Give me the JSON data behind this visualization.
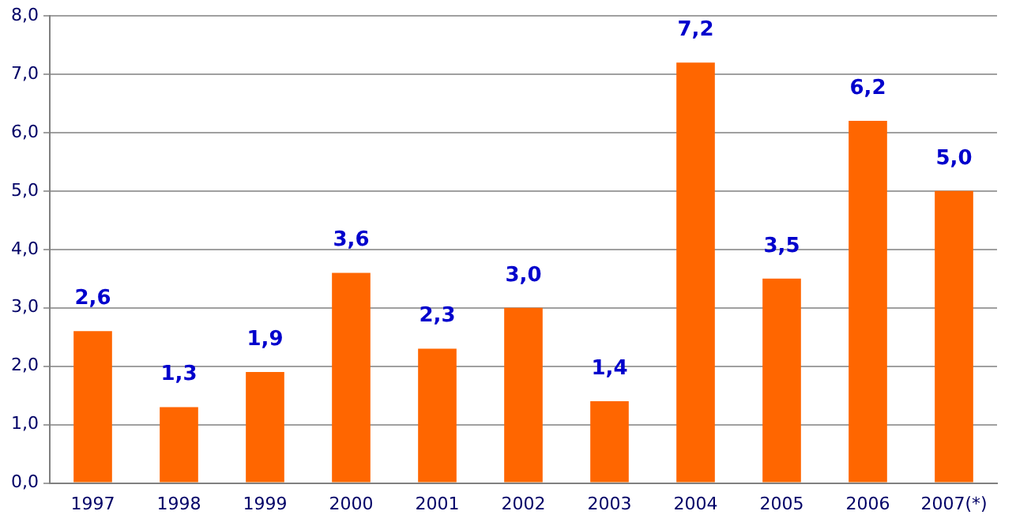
{
  "chart_data": {
    "type": "bar",
    "categories": [
      "1997",
      "1998",
      "1999",
      "2000",
      "2001",
      "2002",
      "2003",
      "2004",
      "2005",
      "2006",
      "2007(*)"
    ],
    "values": [
      2.6,
      1.3,
      1.9,
      3.6,
      2.3,
      3.0,
      1.4,
      7.2,
      3.5,
      6.2,
      5.0
    ],
    "value_labels": [
      "2,6",
      "1,3",
      "1,9",
      "3,6",
      "2,3",
      "3,0",
      "1,4",
      "7,2",
      "3,5",
      "6,2",
      "5,0"
    ],
    "color": "#ff6600",
    "ylim": [
      0,
      8
    ],
    "yticks": [
      {
        "value": 0,
        "label": "0,0"
      },
      {
        "value": 1,
        "label": "1,0"
      },
      {
        "value": 2,
        "label": "2,0"
      },
      {
        "value": 3,
        "label": "3,0"
      },
      {
        "value": 4,
        "label": "4,0"
      },
      {
        "value": 5,
        "label": "5,0"
      },
      {
        "value": 6,
        "label": "6,0"
      },
      {
        "value": 7,
        "label": "7,0"
      },
      {
        "value": 8,
        "label": "8,0"
      }
    ],
    "grid": "y"
  }
}
